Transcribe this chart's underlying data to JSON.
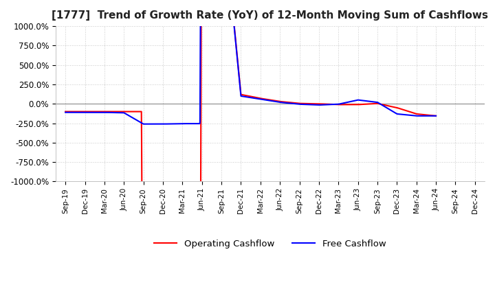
{
  "title": "[1777]  Trend of Growth Rate (YoY) of 12-Month Moving Sum of Cashflows",
  "title_fontsize": 11,
  "ylim": [
    -1000,
    1000
  ],
  "yticks": [
    -1000,
    -750,
    -500,
    -250,
    0,
    250,
    500,
    750,
    1000
  ],
  "ytick_labels": [
    "-1000.0%",
    "-750.0%",
    "-500.0%",
    "-250.0%",
    "0.0%",
    "250.0%",
    "500.0%",
    "750.0%",
    "1000.0%"
  ],
  "x_labels": [
    "Sep-19",
    "Dec-19",
    "Mar-20",
    "Jun-20",
    "Sep-20",
    "Dec-20",
    "Mar-21",
    "Jun-21",
    "Sep-21",
    "Dec-21",
    "Mar-22",
    "Jun-22",
    "Sep-22",
    "Dec-22",
    "Mar-23",
    "Jun-23",
    "Sep-23",
    "Dec-23",
    "Mar-24",
    "Jun-24",
    "Sep-24",
    "Dec-24"
  ],
  "operating_cashflow": [
    -100,
    -100,
    -100,
    -100,
    -9999,
    -9999,
    -9999,
    -9999,
    9999,
    120,
    70,
    30,
    5,
    0,
    -10,
    -10,
    5,
    -50,
    -130,
    -155,
    null,
    null
  ],
  "free_cashflow": [
    -110,
    -110,
    -110,
    -115,
    -260,
    -260,
    -255,
    -250,
    9999,
    100,
    60,
    20,
    -5,
    -10,
    -15,
    -5,
    50,
    20,
    -130,
    -155,
    null,
    null
  ],
  "operating_color": "#ff0000",
  "free_color": "#0000ff",
  "legend_labels": [
    "Operating Cashflow",
    "Free Cashflow"
  ],
  "grid_color": "#c8c8c8",
  "grid_style": "dotted",
  "background_color": "#ffffff",
  "line_width": 1.5
}
